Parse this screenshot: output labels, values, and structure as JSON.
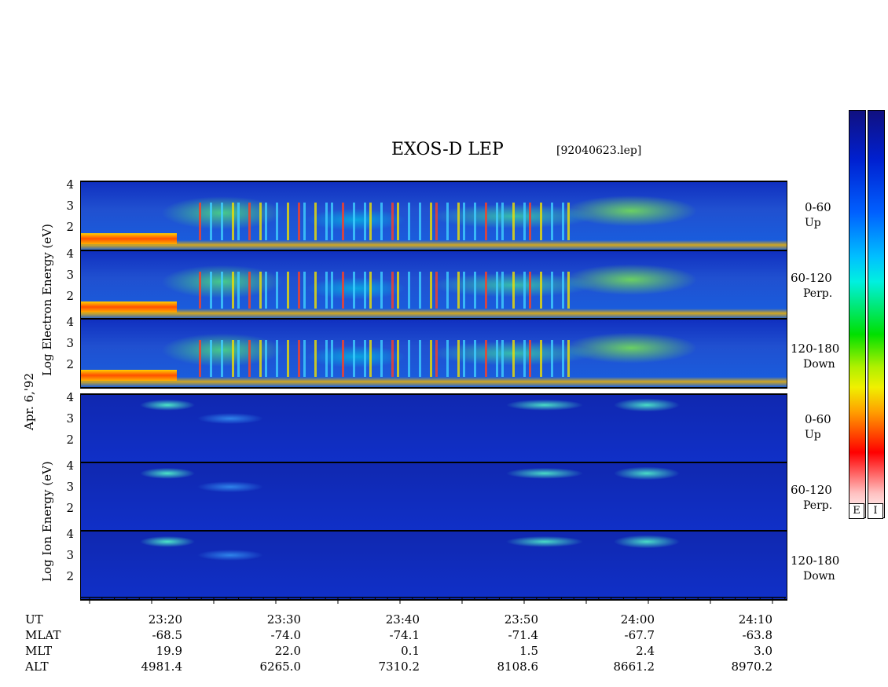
{
  "header": {
    "title": "EXOS-D LEP",
    "filename": "[92040623.lep]"
  },
  "date_label": "Apr. 6,'92",
  "y_labels": {
    "electron_a": "Log  Electron  Energy  (eV)",
    "ion_a": "Log  Ion  Energy  (eV)"
  },
  "channels": [
    {
      "angle": "0-60",
      "dir": "Up"
    },
    {
      "angle": "60-120",
      "dir": "Perp."
    },
    {
      "angle": "120-180",
      "dir": "Down"
    },
    {
      "angle": "0-60",
      "dir": "Up"
    },
    {
      "angle": "60-120",
      "dir": "Perp."
    },
    {
      "angle": "120-180",
      "dir": "Down"
    }
  ],
  "y_ticks": [
    "4",
    "3",
    "2"
  ],
  "colorbar": {
    "labels": [
      "E",
      "I"
    ]
  },
  "axis_rows": {
    "names": [
      "UT",
      "MLAT",
      "MLT",
      "ALT"
    ],
    "UT": [
      "23:20",
      "23:30",
      "23:40",
      "23:50",
      "24:00",
      "24:10"
    ],
    "MLAT": [
      "-68.5",
      "-74.0",
      "-74.1",
      "-71.4",
      "-67.7",
      "-63.8"
    ],
    "MLT": [
      "19.9",
      "22.0",
      "0.1",
      "1.5",
      "2.4",
      "3.0"
    ],
    "ALT": [
      "4981.4",
      "6265.0",
      "7310.2",
      "8108.6",
      "8661.2",
      "8970.2"
    ]
  },
  "chart_data": {
    "type": "heatmap",
    "title": "EXOS-D LEP",
    "xlabel": "UT",
    "ylabel": "Log Energy (eV)",
    "x_range": [
      "23:15",
      "24:12"
    ],
    "ylim": [
      1,
      4
    ],
    "panels": [
      {
        "species": "Electron",
        "pitch_angle": "0-60",
        "direction": "Up"
      },
      {
        "species": "Electron",
        "pitch_angle": "60-120",
        "direction": "Perp."
      },
      {
        "species": "Electron",
        "pitch_angle": "120-180",
        "direction": "Down"
      },
      {
        "species": "Ion",
        "pitch_angle": "0-60",
        "direction": "Up"
      },
      {
        "species": "Ion",
        "pitch_angle": "60-120",
        "direction": "Perp."
      },
      {
        "species": "Ion",
        "pitch_angle": "120-180",
        "direction": "Down"
      }
    ],
    "colormap": [
      "#1010a0",
      "#0050ff",
      "#00e0ff",
      "#00e000",
      "#f0f000",
      "#ff8000",
      "#ff0000",
      "#ffffff"
    ]
  }
}
